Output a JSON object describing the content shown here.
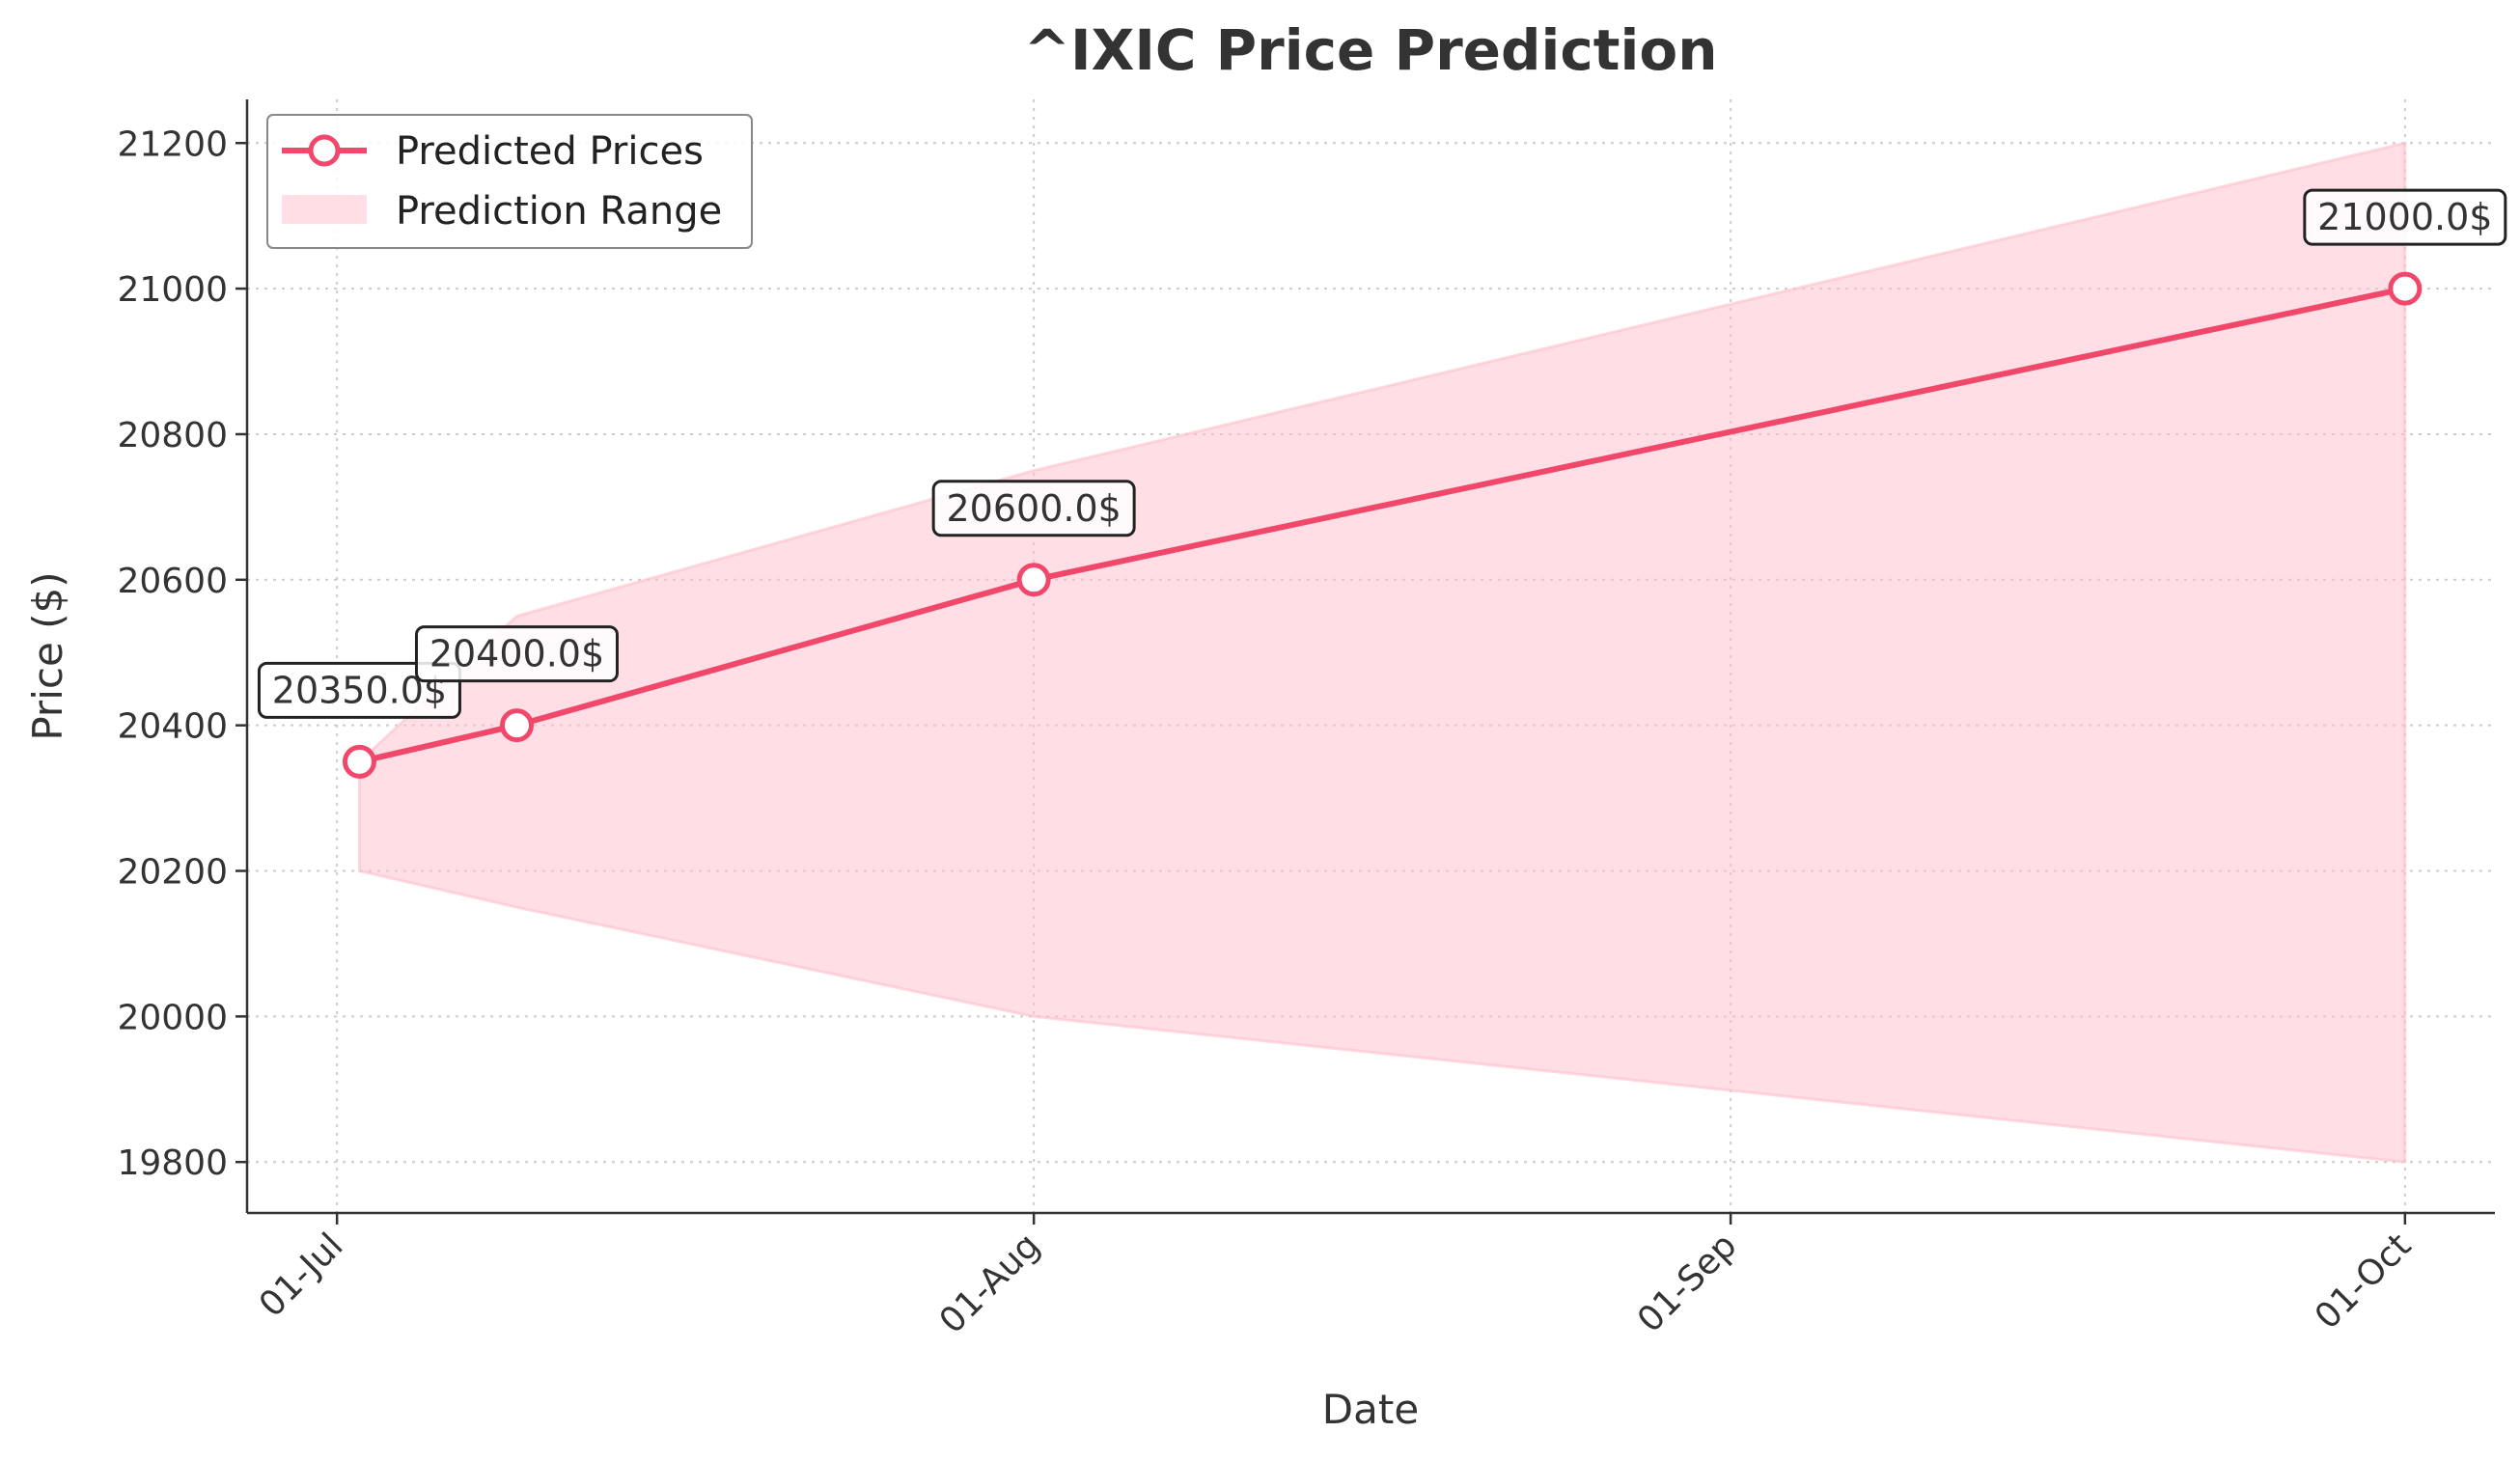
{
  "chart_data": {
    "type": "line",
    "title": "^IXIC Price Prediction",
    "xlabel": "Date",
    "ylabel": "Price ($)",
    "x_ticks": [
      "01-Jul",
      "01-Aug",
      "01-Sep",
      "01-Oct"
    ],
    "x_tick_dates": [
      "2025-07-01",
      "2025-08-01",
      "2025-09-01",
      "2025-10-01"
    ],
    "y_ticks": [
      19800,
      20000,
      20200,
      20400,
      20600,
      20800,
      21000,
      21200
    ],
    "xlim": [
      "2025-06-27",
      "2025-10-05"
    ],
    "ylim": [
      19730,
      21260
    ],
    "grid": true,
    "legend_position": "top-left",
    "series": [
      {
        "name": "Predicted Prices",
        "color": "#f0476a",
        "x": [
          "2025-07-02",
          "2025-07-09",
          "2025-08-01",
          "2025-10-01"
        ],
        "values": [
          20350.0,
          20400.0,
          20600.0,
          21000.0
        ],
        "labels": [
          "20350.0$",
          "20400.0$",
          "20600.0$",
          "21000.0$"
        ]
      }
    ],
    "range": {
      "name": "Prediction Range",
      "color": "#ffc0cb",
      "x": [
        "2025-07-02",
        "2025-07-09",
        "2025-08-01",
        "2025-10-01"
      ],
      "lower": [
        20200,
        20150,
        20000,
        19800
      ],
      "upper": [
        20350,
        20550,
        20750,
        21200
      ]
    }
  }
}
